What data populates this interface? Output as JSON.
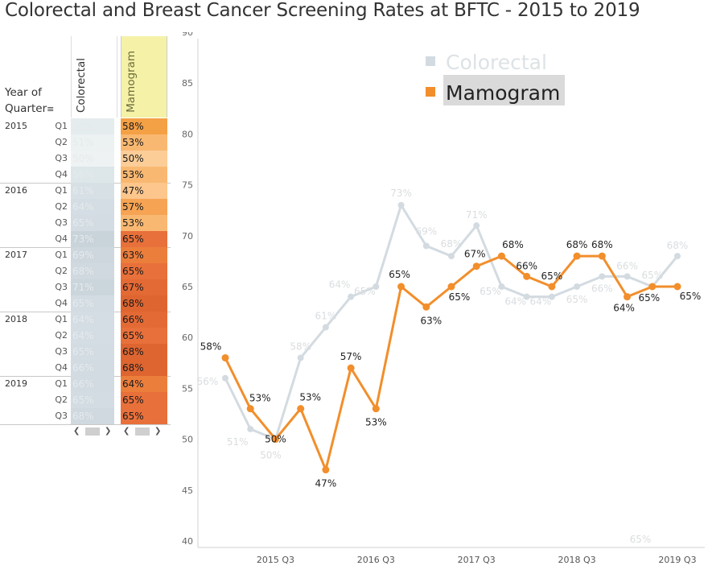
{
  "title": "Colorectal and Breast Cancer Screening Rates at BFTC - 2015 to 2019",
  "table": {
    "year_header_line1": "Year of",
    "year_header_line2": "Quarter",
    "col_colorectal": "Colorectal",
    "col_mamogram": "Mamogram",
    "rows": [
      {
        "year": "2015",
        "q": "Q1",
        "colo": "56%",
        "mamo": "58%"
      },
      {
        "year": "",
        "q": "Q2",
        "colo": "51%",
        "mamo": "53%"
      },
      {
        "year": "",
        "q": "Q3",
        "colo": "50%",
        "mamo": "50%"
      },
      {
        "year": "",
        "q": "Q4",
        "colo": "58%",
        "mamo": "53%"
      },
      {
        "year": "2016",
        "q": "Q1",
        "colo": "61%",
        "mamo": "47%"
      },
      {
        "year": "",
        "q": "Q2",
        "colo": "64%",
        "mamo": "57%"
      },
      {
        "year": "",
        "q": "Q3",
        "colo": "65%",
        "mamo": "53%"
      },
      {
        "year": "",
        "q": "Q4",
        "colo": "73%",
        "mamo": "65%"
      },
      {
        "year": "2017",
        "q": "Q1",
        "colo": "69%",
        "mamo": "63%"
      },
      {
        "year": "",
        "q": "Q2",
        "colo": "68%",
        "mamo": "65%"
      },
      {
        "year": "",
        "q": "Q3",
        "colo": "71%",
        "mamo": "67%"
      },
      {
        "year": "",
        "q": "Q4",
        "colo": "65%",
        "mamo": "68%"
      },
      {
        "year": "2018",
        "q": "Q1",
        "colo": "64%",
        "mamo": "66%"
      },
      {
        "year": "",
        "q": "Q2",
        "colo": "64%",
        "mamo": "65%"
      },
      {
        "year": "",
        "q": "Q3",
        "colo": "65%",
        "mamo": "68%"
      },
      {
        "year": "",
        "q": "Q4",
        "colo": "66%",
        "mamo": "68%"
      },
      {
        "year": "2019",
        "q": "Q1",
        "colo": "66%",
        "mamo": "64%"
      },
      {
        "year": "",
        "q": "Q2",
        "colo": "65%",
        "mamo": "65%"
      },
      {
        "year": "",
        "q": "Q3",
        "colo": "68%",
        "mamo": "65%"
      }
    ],
    "mamo_colors": [
      "#f4a045",
      "#f9b871",
      "#fccd97",
      "#f9b871",
      "#fcc68c",
      "#f6a454",
      "#f9b871",
      "#e8703a",
      "#ec7e3c",
      "#e8703a",
      "#e46a35",
      "#de6530",
      "#e46a35",
      "#e8703a",
      "#de6530",
      "#de6530",
      "#ec7e3c",
      "#e8703a",
      "#e8703a"
    ],
    "colo_colors": [
      "#e4ecee",
      "#ecf1f2",
      "#eef2f3",
      "#dde6e9",
      "#d7e0e5",
      "#d3dde3",
      "#d2dce2",
      "#c9d3da",
      "#cdd7dd",
      "#cfd9df",
      "#cbd5dc",
      "#d2dce2",
      "#d3dde3",
      "#d3dde3",
      "#d2dce2",
      "#d1dbe1",
      "#d1dbe1",
      "#d2dce2",
      "#cfd9df"
    ]
  },
  "chart_data": {
    "type": "line",
    "x": [
      "2015 Q1",
      "2015 Q2",
      "2015 Q3",
      "2015 Q4",
      "2016 Q1",
      "2016 Q2",
      "2016 Q3",
      "2016 Q4",
      "2017 Q1",
      "2017 Q2",
      "2017 Q3",
      "2017 Q4",
      "2018 Q1",
      "2018 Q2",
      "2018 Q3",
      "2018 Q4",
      "2019 Q1",
      "2019 Q2",
      "2019 Q3"
    ],
    "x_tick_labels": [
      {
        "label": "2015 Q3",
        "index": 2
      },
      {
        "label": "2016 Q3",
        "index": 6
      },
      {
        "label": "2017 Q3",
        "index": 10
      },
      {
        "label": "2018 Q3",
        "index": 14
      },
      {
        "label": "2019 Q3",
        "index": 18
      }
    ],
    "ylim": [
      40,
      90
    ],
    "y_ticks": [
      40,
      45,
      50,
      55,
      60,
      65,
      70,
      75,
      80,
      85,
      90
    ],
    "series": [
      {
        "name": "Colorectal",
        "color": "#d3dbe1",
        "label_color": "#d9dde0",
        "values": [
          56,
          51,
          50,
          58,
          61,
          64,
          65,
          73,
          69,
          68,
          71,
          65,
          64,
          64,
          65,
          66,
          66,
          65,
          68
        ],
        "labels": [
          "56%",
          "51%",
          "50%",
          "58%",
          "61%",
          "64%",
          "65%",
          "73%",
          "69%",
          "68%",
          "71%",
          "65%",
          "64%",
          "64%",
          "65%",
          "66%",
          "66%",
          "65%",
          "68%"
        ]
      },
      {
        "name": "Mamogram",
        "color": "#f28e2b",
        "label_color": "#222222",
        "values": [
          58,
          53,
          50,
          53,
          47,
          57,
          53,
          65,
          63,
          65,
          67,
          68,
          66,
          65,
          68,
          68,
          64,
          65,
          65
        ],
        "labels": [
          "58%",
          "53%",
          "50%",
          "53%",
          "47%",
          "57%",
          "53%",
          "65%",
          "63%",
          "65%",
          "67%",
          "68%",
          "66%",
          "65%",
          "68%",
          "68%",
          "64%",
          "65%",
          "65%"
        ]
      }
    ],
    "extra_label": "65%",
    "legend_position": "top-center"
  }
}
